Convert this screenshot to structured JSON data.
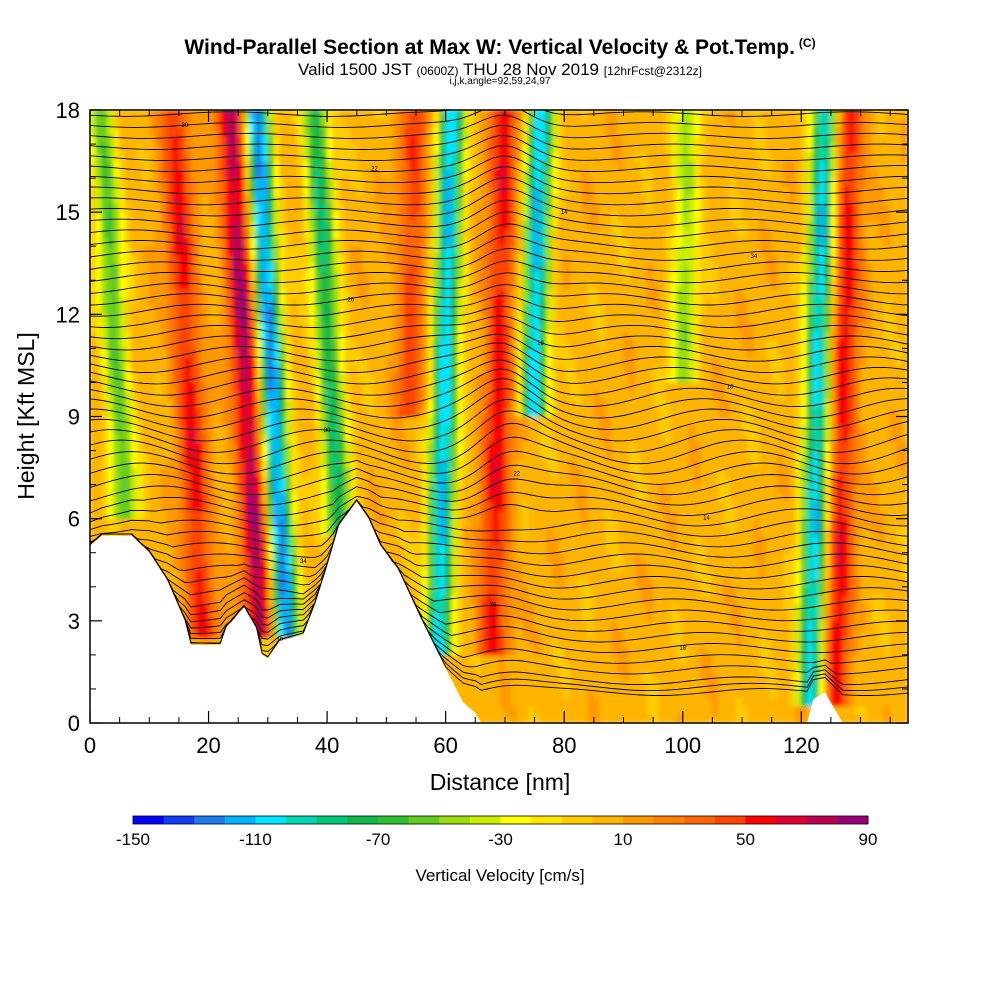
{
  "header": {
    "title": "Wind-Parallel Section at Max W: Vertical Velocity & Pot.Temp.",
    "title_mark": "(C)",
    "valid_prefix": "Valid 1500 JST",
    "valid_utc": "(0600Z)",
    "valid_date": "THU 28 Nov 2019",
    "forecast": "[12hrFcst@2312z]",
    "indices": "i,j,k,angle=92,59,24,97"
  },
  "chart_data": {
    "type": "heatmap",
    "xlabel": "Distance [nm]",
    "ylabel": "Height [Kft MSL]",
    "xlim": [
      0,
      138
    ],
    "ylim": [
      0,
      18
    ],
    "x_ticks": [
      "0",
      "20",
      "40",
      "60",
      "80",
      "100",
      "120"
    ],
    "y_ticks": [
      "0",
      "3",
      "6",
      "9",
      "12",
      "15",
      "18"
    ],
    "colorbar": {
      "label": "Vertical Velocity [cm/s]",
      "min": -150,
      "max": 90,
      "step": 10,
      "tick_labels": [
        "-150",
        "-110",
        "-70",
        "-30",
        "10",
        "50",
        "90"
      ],
      "colors": [
        "#0000ff",
        "#0f3cf5",
        "#1e7bf0",
        "#00b4ff",
        "#00e5ff",
        "#00d7b4",
        "#00c87a",
        "#10b84a",
        "#30c030",
        "#66cc22",
        "#99dd11",
        "#ccee00",
        "#ffff00",
        "#ffe600",
        "#ffcc00",
        "#ffb400",
        "#ff9900",
        "#ff8000",
        "#ff6600",
        "#ff4400",
        "#ff0000",
        "#dd0033",
        "#bb0055",
        "#99007a",
        "#660099"
      ]
    },
    "background_value_cm_s": 5,
    "updraft_bands": [
      {
        "x_center": 19,
        "min_height": 2.5,
        "max_w": 55
      },
      {
        "x_center": 29,
        "min_height": 2.5,
        "max_w": 80
      },
      {
        "x_center": 53,
        "min_height": 9,
        "max_w": 45
      },
      {
        "x_center": 68,
        "min_height": 2,
        "max_w": 55
      },
      {
        "x_center": 126,
        "min_height": 0.5,
        "max_w": 60
      }
    ],
    "downdraft_bands": [
      {
        "x_center": 7,
        "min_height": 6,
        "min_w": -60
      },
      {
        "x_center": 33,
        "min_height": 2.5,
        "min_w": -130
      },
      {
        "x_center": 43,
        "min_height": 5.5,
        "min_w": -80
      },
      {
        "x_center": 59,
        "min_height": 2,
        "min_w": -110
      },
      {
        "x_center": 74,
        "min_height": 9,
        "min_w": -110
      },
      {
        "x_center": 99,
        "min_height": 10,
        "min_w": -45
      },
      {
        "x_center": 122,
        "min_height": 0.5,
        "min_w": -110
      }
    ],
    "terrain_profile": [
      {
        "x": 0,
        "h": 5.2
      },
      {
        "x": 2,
        "h": 5.5
      },
      {
        "x": 7,
        "h": 5.5
      },
      {
        "x": 10,
        "h": 5.0
      },
      {
        "x": 13,
        "h": 4.2
      },
      {
        "x": 16,
        "h": 3.0
      },
      {
        "x": 17,
        "h": 2.3
      },
      {
        "x": 22,
        "h": 2.3
      },
      {
        "x": 23,
        "h": 2.8
      },
      {
        "x": 26,
        "h": 3.4
      },
      {
        "x": 28,
        "h": 2.8
      },
      {
        "x": 29,
        "h": 2.0
      },
      {
        "x": 30,
        "h": 1.9
      },
      {
        "x": 32,
        "h": 2.4
      },
      {
        "x": 36,
        "h": 2.6
      },
      {
        "x": 38,
        "h": 3.5
      },
      {
        "x": 40,
        "h": 4.6
      },
      {
        "x": 42,
        "h": 5.8
      },
      {
        "x": 45,
        "h": 6.5
      },
      {
        "x": 47,
        "h": 6.0
      },
      {
        "x": 49,
        "h": 5.2
      },
      {
        "x": 52,
        "h": 4.5
      },
      {
        "x": 56,
        "h": 3.0
      },
      {
        "x": 60,
        "h": 1.6
      },
      {
        "x": 63,
        "h": 0.6
      },
      {
        "x": 65,
        "h": 0.3
      },
      {
        "x": 66,
        "h": 0
      },
      {
        "x": 121,
        "h": 0
      },
      {
        "x": 122,
        "h": 0.7
      },
      {
        "x": 124,
        "h": 0.9
      },
      {
        "x": 126,
        "h": 0.3
      },
      {
        "x": 127,
        "h": 0
      },
      {
        "x": 138,
        "h": 0
      }
    ],
    "theta_contours": {
      "description": "Potential temperature isentropes, solid black lines",
      "count": 55,
      "label_values": [
        "8",
        "10",
        "12",
        "14",
        "16",
        "18",
        "20",
        "22",
        "24",
        "26",
        "28",
        "30",
        "32",
        "34"
      ]
    }
  }
}
